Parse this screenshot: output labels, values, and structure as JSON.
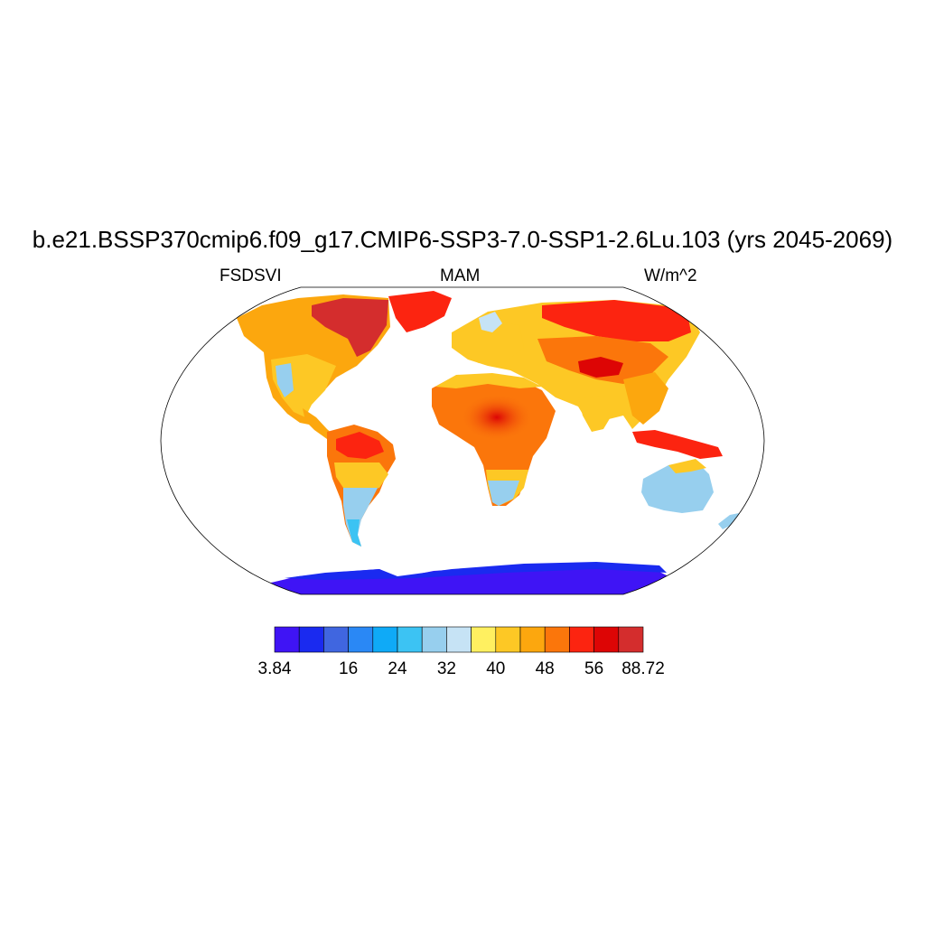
{
  "figure": {
    "title": "b.e21.BSSP370cmip6.f09_g17.CMIP6-SSP3-7.0-SSP1-2.6Lu.103 (yrs 2045-2069)",
    "left_string": "FSDSVI",
    "center_string": "MAM",
    "right_string": "W/m^2"
  },
  "colorbar": {
    "colors": [
      "#3f14f5",
      "#1a2af0",
      "#4066e0",
      "#2a88f5",
      "#0faaf7",
      "#3cc3f3",
      "#97cfee",
      "#c6e3f5",
      "#fff060",
      "#fdc825",
      "#fca70e",
      "#fb760b",
      "#fc2410",
      "#dd0505",
      "#d42d2d"
    ],
    "labels": [
      {
        "text": "3.84",
        "boundary": 0
      },
      {
        "text": "16",
        "boundary": 3
      },
      {
        "text": "24",
        "boundary": 5
      },
      {
        "text": "32",
        "boundary": 7
      },
      {
        "text": "40",
        "boundary": 9
      },
      {
        "text": "48",
        "boundary": 11
      },
      {
        "text": "56",
        "boundary": 13
      },
      {
        "text": "88.72",
        "boundary": 15
      }
    ]
  }
}
